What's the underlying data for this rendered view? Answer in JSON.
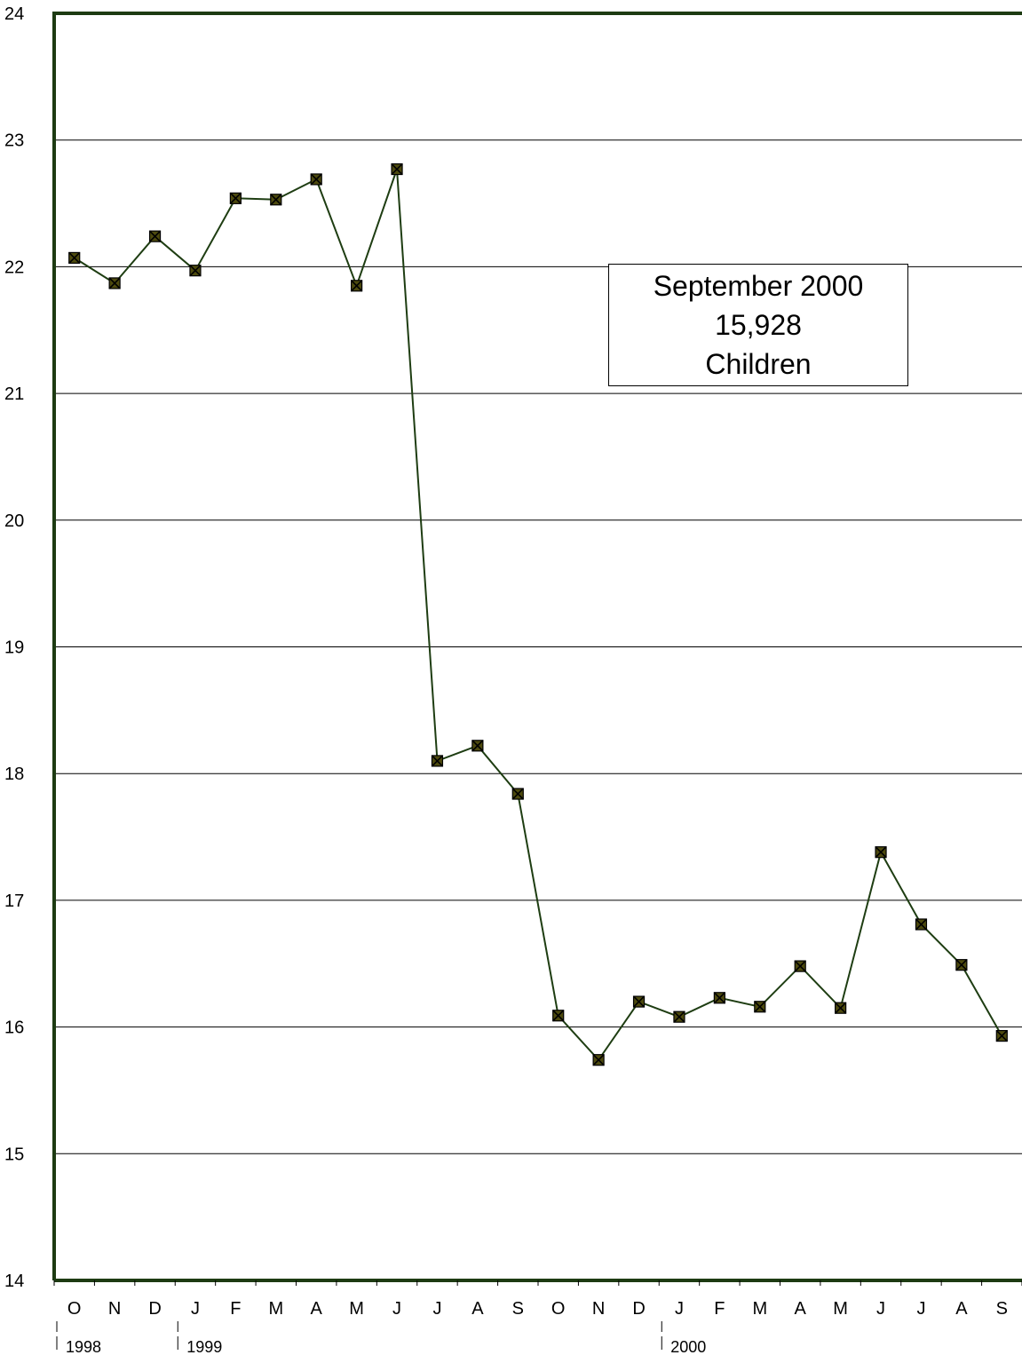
{
  "chart_data": {
    "type": "line",
    "title": "",
    "xlabel": "",
    "ylabel": "",
    "ylim": [
      14,
      24
    ],
    "yticks": [
      14,
      15,
      16,
      17,
      18,
      19,
      20,
      21,
      22,
      23,
      24
    ],
    "grid": true,
    "categories": [
      "O",
      "N",
      "D",
      "J",
      "F",
      "M",
      "A",
      "M",
      "J",
      "J",
      "A",
      "S",
      "O",
      "N",
      "D",
      "J",
      "F",
      "M",
      "A",
      "M",
      "J",
      "J",
      "A",
      "S"
    ],
    "year_labels": [
      {
        "label": "1998",
        "start_index": 0
      },
      {
        "label": "1999",
        "start_index": 3
      },
      {
        "label": "2000",
        "start_index": 15
      }
    ],
    "series": [
      {
        "values": [
          22.07,
          21.87,
          22.24,
          21.97,
          22.54,
          22.53,
          22.69,
          21.85,
          22.77,
          18.1,
          18.22,
          17.84,
          16.09,
          15.74,
          16.2,
          16.08,
          16.23,
          16.16,
          16.48,
          16.15,
          17.38,
          16.81,
          16.49,
          15.93
        ],
        "color": "#1e3d12",
        "marker_color": "#4d4a0e"
      }
    ],
    "annotations": [
      {
        "lines": [
          "September 2000",
          "15,928",
          "Children"
        ],
        "position": "upper-right"
      }
    ]
  }
}
